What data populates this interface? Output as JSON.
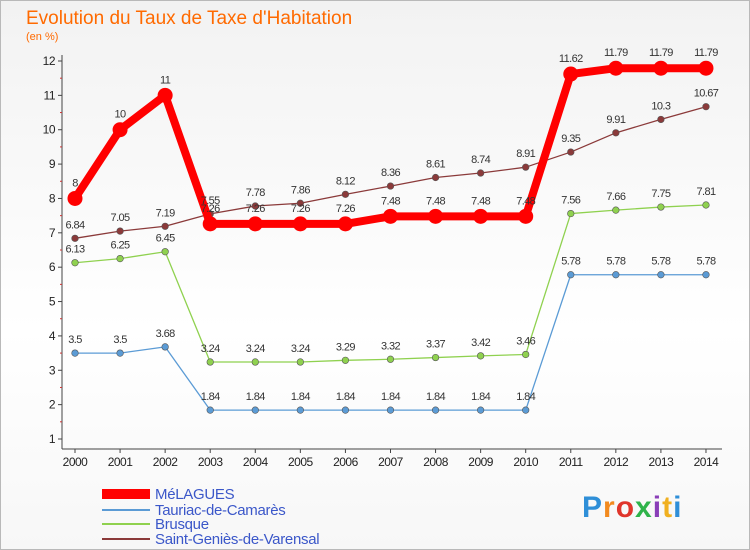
{
  "chart_data": {
    "type": "line",
    "title": "Evolution du Taux de Taxe d'Habitation",
    "subtitle": "(en %)",
    "x": [
      "2000",
      "2001",
      "2002",
      "2003",
      "2004",
      "2005",
      "2006",
      "2007",
      "2008",
      "2009",
      "2010",
      "2011",
      "2012",
      "2013",
      "2014"
    ],
    "ylim": [
      1,
      12
    ],
    "yticks": [
      "1",
      "2",
      "3",
      "4",
      "5",
      "6",
      "7",
      "8",
      "9",
      "10",
      "11",
      "12"
    ],
    "grid": false,
    "legend_position": "bottom-left",
    "series": [
      {
        "name": "MéLAGUES",
        "color": "#ff0000",
        "values": [
          8,
          10,
          11,
          7.26,
          7.26,
          7.26,
          7.26,
          7.48,
          7.48,
          7.48,
          7.48,
          11.62,
          11.79,
          11.79,
          11.79
        ],
        "labels": [
          "8",
          "10",
          "11",
          "7.26",
          "7.26",
          "7.26",
          "7.26",
          "7.48",
          "7.48",
          "7.48",
          "7.48",
          "11.62",
          "11.79",
          "11.79",
          "11.79"
        ]
      },
      {
        "name": "Tauriac-de-Camarès",
        "color": "#5b9bd5",
        "values": [
          3.5,
          3.5,
          3.68,
          1.84,
          1.84,
          1.84,
          1.84,
          1.84,
          1.84,
          1.84,
          1.84,
          5.78,
          5.78,
          5.78,
          5.78
        ],
        "labels": [
          "3.5",
          "3.5",
          "3.68",
          "1.84",
          "1.84",
          "1.84",
          "1.84",
          "1.84",
          "1.84",
          "1.84",
          "1.84",
          "5.78",
          "5.78",
          "5.78",
          "5.78"
        ]
      },
      {
        "name": "Brusque",
        "color": "#8fd14f",
        "values": [
          6.13,
          6.25,
          6.45,
          3.24,
          3.24,
          3.24,
          3.29,
          3.32,
          3.37,
          3.42,
          3.46,
          7.56,
          7.66,
          7.75,
          7.81
        ],
        "labels": [
          "6.13",
          "6.25",
          "6.45",
          "3.24",
          "3.24",
          "3.24",
          "3.29",
          "3.32",
          "3.37",
          "3.42",
          "3.46",
          "7.56",
          "7.66",
          "7.75",
          "7.81"
        ]
      },
      {
        "name": "Saint-Geniès-de-Varensal",
        "color": "#8b3a3a",
        "values": [
          6.84,
          7.05,
          7.19,
          7.55,
          7.78,
          7.86,
          8.12,
          8.36,
          8.61,
          8.74,
          8.91,
          9.35,
          9.91,
          10.3,
          10.67
        ],
        "labels": [
          "6.84",
          "7.05",
          "7.19",
          "7.55",
          "7.78",
          "7.86",
          "8.12",
          "8.36",
          "8.61",
          "8.74",
          "8.91",
          "9.35",
          "9.91",
          "10.3",
          "10.67"
        ]
      }
    ]
  },
  "logo": {
    "text": "Proxiti"
  }
}
